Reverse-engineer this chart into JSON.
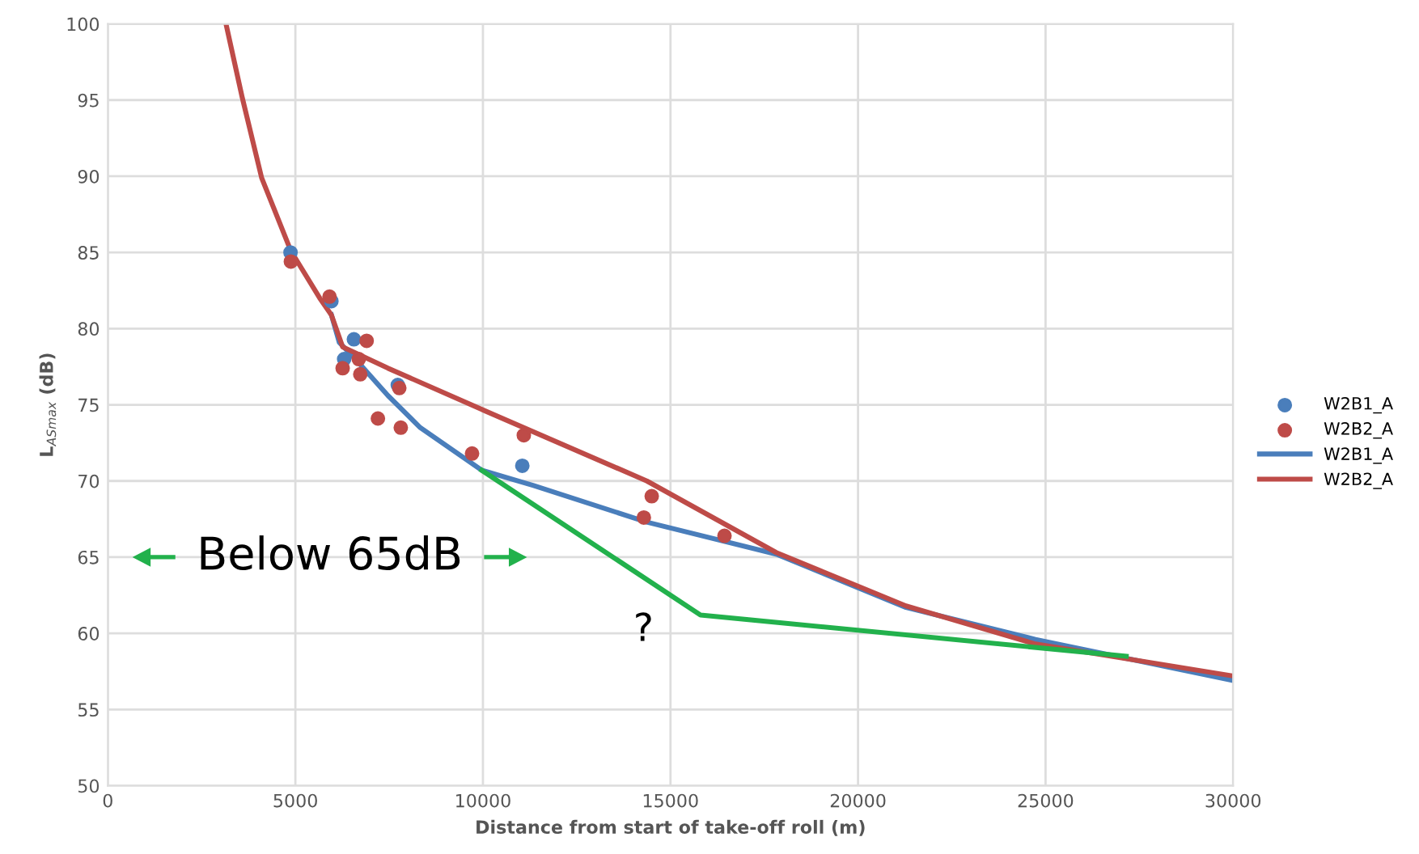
{
  "chart_data": {
    "type": "scatter",
    "xlabel": "Distance from start of take-off roll (m)",
    "ylabel": "L$_{ASmax}$ (dB)",
    "xlim": [
      0,
      30000
    ],
    "xticks": [
      0,
      5000,
      10000,
      15000,
      20000,
      25000,
      30000
    ],
    "ylim": [
      50,
      100
    ],
    "yticks": [
      50,
      55,
      60,
      65,
      70,
      75,
      80,
      85,
      90,
      95,
      100
    ],
    "grid": true,
    "legend": "right",
    "series": [
      {
        "name": "W2B1_A",
        "marker": "circle",
        "color": "#4a7ebb",
        "x": [
          4870,
          5960,
          6300,
          6560,
          7730,
          11050
        ],
        "values": [
          85.0,
          81.8,
          78.0,
          79.3,
          76.3,
          71.0
        ]
      },
      {
        "name": "W2B2_A",
        "marker": "circle",
        "color": "#be4b48",
        "x": [
          4880,
          5910,
          6260,
          6690,
          6730,
          6900,
          7200,
          7770,
          7810,
          9710,
          11090,
          14290,
          14500,
          16440
        ],
        "values": [
          84.4,
          82.1,
          77.4,
          78.0,
          77.0,
          79.2,
          74.1,
          76.1,
          73.5,
          71.8,
          73.0,
          67.6,
          69.0,
          66.4
        ]
      },
      {
        "name": "W2B1_A",
        "type": "line",
        "marker": "none",
        "color": "#4a7ebb",
        "x": [
          5960,
          6170,
          6600,
          7470,
          8330,
          9970,
          11350,
          14370,
          17820,
          21280,
          24730,
          30000
        ],
        "values": [
          80.9,
          79.1,
          78.0,
          75.6,
          73.5,
          70.7,
          69.7,
          67.3,
          65.2,
          61.7,
          59.6,
          56.9
        ]
      },
      {
        "name": "W2B2_A",
        "type": "line",
        "marker": "none",
        "color": "#be4b48",
        "x": [
          3150,
          3580,
          4100,
          4880,
          5650,
          5960,
          6260,
          7470,
          10060,
          14370,
          17820,
          21280,
          24730,
          30000
        ],
        "values": [
          100,
          95.2,
          89.9,
          85.1,
          82.0,
          80.9,
          78.8,
          77.4,
          74.6,
          70.0,
          65.3,
          61.8,
          59.3,
          57.2
        ]
      },
      {
        "type": "line",
        "marker": "none",
        "color": "#22b14c",
        "x": [
          9970,
          15800,
          27150
        ],
        "values": [
          70.7,
          61.2,
          58.5
        ]
      }
    ],
    "annotations": [
      "Below 65dB",
      "?"
    ]
  }
}
